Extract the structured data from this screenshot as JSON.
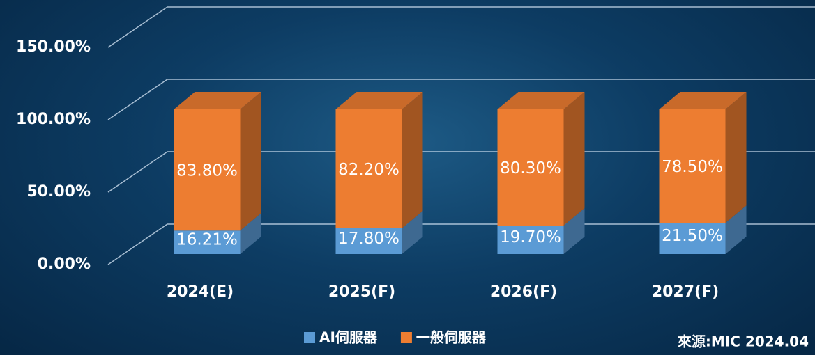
{
  "chart_data": {
    "type": "bar3d_stacked",
    "categories": [
      "2024(E)",
      "2025(F)",
      "2026(F)",
      "2027(F)"
    ],
    "series": [
      {
        "name": "AI伺服器",
        "color": "#5b9bd5",
        "values": [
          16.21,
          17.8,
          19.7,
          21.5
        ],
        "value_labels": [
          "16.21%",
          "17.80%",
          "19.70%",
          "21.50%"
        ]
      },
      {
        "name": "一般伺服器",
        "color": "#ed7d31",
        "values": [
          83.8,
          82.2,
          80.3,
          78.5
        ],
        "value_labels": [
          "83.80%",
          "82.20%",
          "80.30%",
          "78.50%"
        ]
      }
    ],
    "ylim": [
      0,
      150
    ],
    "yticks": [
      {
        "value": 0,
        "label": "0.00%"
      },
      {
        "value": 50,
        "label": "50.00%"
      },
      {
        "value": 100,
        "label": "100.00%"
      },
      {
        "value": 150,
        "label": "150.00%"
      }
    ],
    "grid": true,
    "source": "來源:MIC 2024.04"
  }
}
